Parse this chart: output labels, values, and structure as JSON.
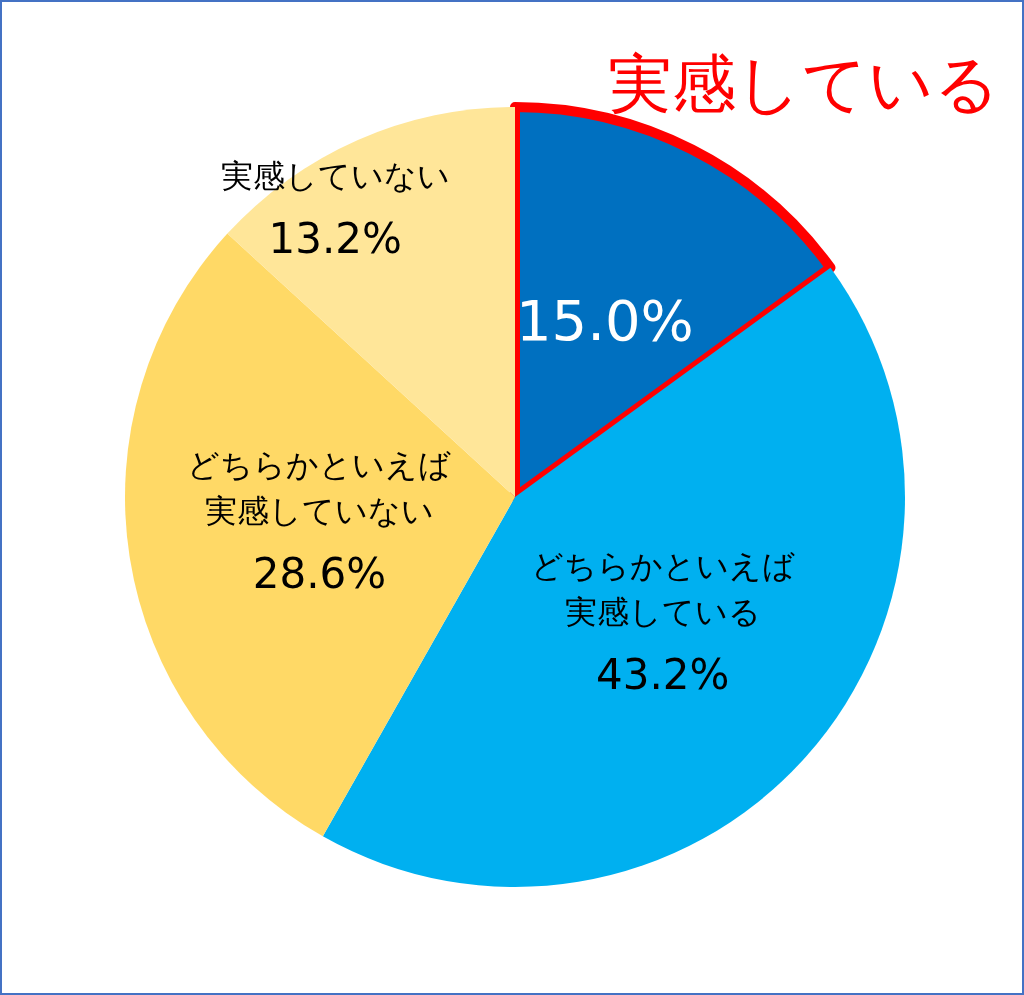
{
  "chart_data": {
    "type": "pie",
    "categories": [
      "実感している",
      "どちらかといえば実感している",
      "どちらかといえば実感していない",
      "実感していない"
    ],
    "values": [
      15.0,
      43.2,
      28.6,
      13.2
    ],
    "value_labels": [
      "15.0%",
      "43.2%",
      "28.6%",
      "13.2%"
    ],
    "colors": [
      "#0070c0",
      "#00b0f0",
      "#ffd966",
      "#ffe699"
    ],
    "legend": false
  }
}
